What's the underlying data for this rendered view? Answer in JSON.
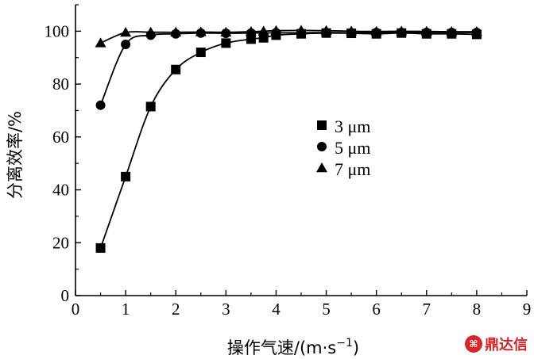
{
  "chart_data": {
    "type": "line",
    "xlabel": "操作气速/(m·s",
    "xlabel_exp": "−1",
    "xlabel_close": ")",
    "ylabel": "分离效率/%",
    "xlim": [
      0,
      9
    ],
    "ylim": [
      0,
      110
    ],
    "xticks": [
      0,
      1,
      2,
      3,
      4,
      5,
      6,
      7,
      8,
      9
    ],
    "yticks": [
      0,
      20,
      40,
      60,
      80,
      100
    ],
    "legend_position": "center-right",
    "grid": false,
    "series": [
      {
        "name": "3 μm",
        "marker": "square",
        "x": [
          0.5,
          1.0,
          1.5,
          2.0,
          2.5,
          3.0,
          3.5,
          3.75,
          4.0,
          4.5,
          5.0,
          5.5,
          6.0,
          6.5,
          7.0,
          7.5,
          8.0
        ],
        "y": [
          18,
          45,
          71.5,
          85.5,
          92,
          95.5,
          97,
          97.5,
          98.5,
          99,
          99.3,
          99.2,
          99,
          99.3,
          99,
          99,
          98.8
        ]
      },
      {
        "name": "5 μm",
        "marker": "circle",
        "x": [
          0.5,
          1.0,
          1.5,
          2.0,
          2.5,
          3.0,
          3.5,
          4.0,
          4.5,
          5.0,
          5.5,
          6.0,
          6.5,
          7.0,
          7.5,
          8.0
        ],
        "y": [
          72,
          95,
          98.5,
          99,
          99.3,
          99.2,
          99.3,
          99.4,
          99.4,
          99.5,
          99.4,
          99.5,
          99.5,
          99.5,
          99.5,
          99.5
        ]
      },
      {
        "name": "7 μm",
        "marker": "triangle",
        "x": [
          0.5,
          1.0,
          1.5,
          2.0,
          2.5,
          3.0,
          3.5,
          3.75,
          4.0,
          4.5,
          5.0,
          5.5,
          6.0,
          6.5,
          7.0,
          7.5,
          8.0
        ],
        "y": [
          95.5,
          99.5,
          99.6,
          99.6,
          99.7,
          99.6,
          99.8,
          100,
          100.2,
          100.3,
          100.2,
          100,
          99.9,
          100,
          99.9,
          99.8,
          99.8
        ]
      }
    ]
  },
  "watermark": {
    "logo_glyph": "⌘",
    "text": "鼎达信",
    "color": "#d9252a"
  }
}
